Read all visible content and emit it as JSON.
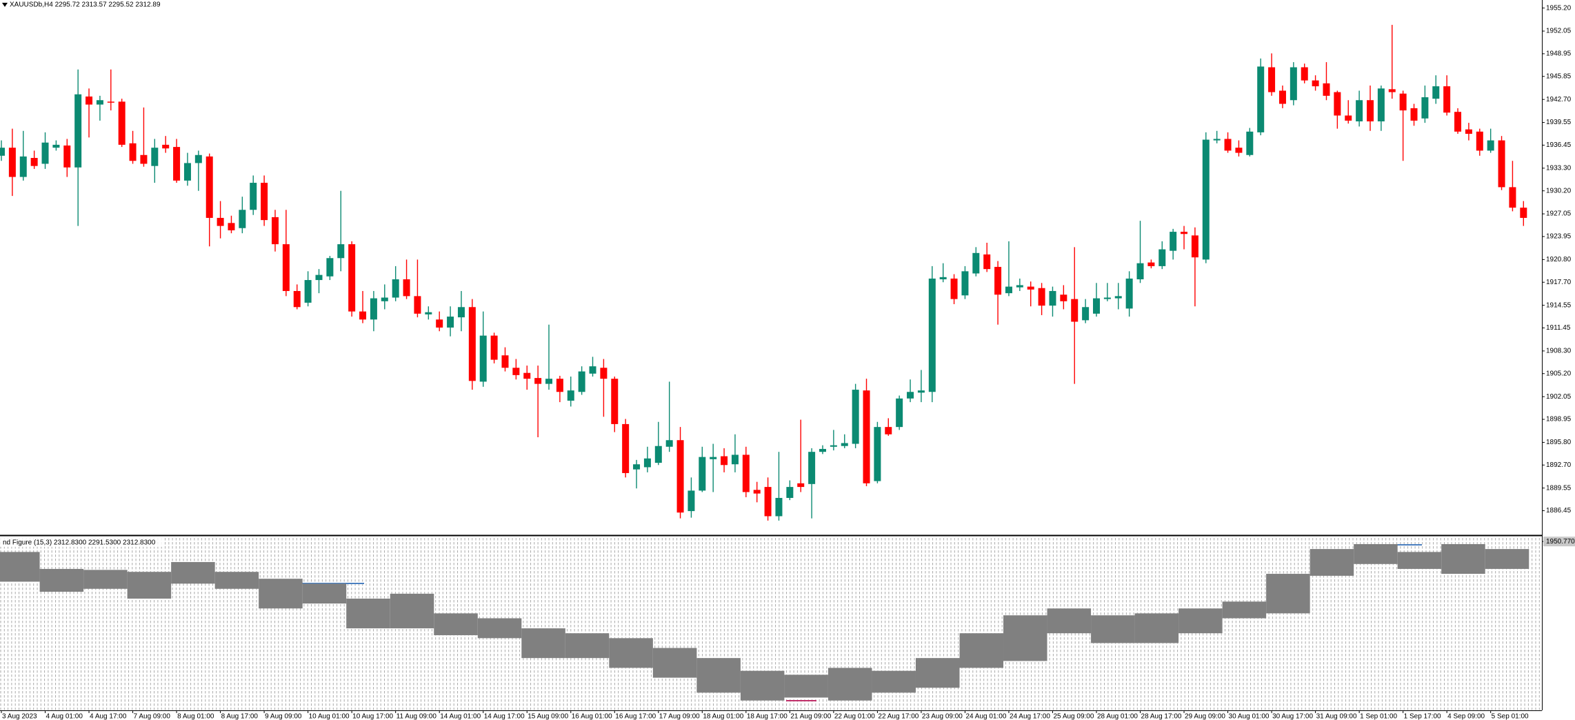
{
  "chart_data": [
    {
      "type": "candlestick",
      "title": "XAUUSDb,H4  2295.72 2313.57 2295.52 2312.89",
      "up_color": "#0b8a72",
      "down_color": "#ff0000",
      "categories": [
        "3 Aug 2023",
        null,
        null,
        null,
        "4 Aug 01:00",
        null,
        null,
        null,
        "4 Aug 17:00",
        null,
        null,
        null,
        "7 Aug 09:00",
        null,
        null,
        null,
        "8 Aug 01:00",
        null,
        null,
        null,
        "8 Aug 17:00",
        null,
        null,
        null,
        "9 Aug 09:00",
        null,
        null,
        null,
        "10 Aug 01:00",
        null,
        null,
        null,
        "10 Aug 17:00",
        null,
        null,
        null,
        "11 Aug 09:00",
        null,
        null,
        null,
        "14 Aug 01:00",
        null,
        null,
        null,
        "14 Aug 17:00",
        null,
        null,
        null,
        "15 Aug 09:00",
        null,
        null,
        null,
        "16 Aug 01:00",
        null,
        null,
        null,
        "16 Aug 17:00",
        null,
        null,
        null,
        "17 Aug 09:00",
        null,
        null,
        null,
        "18 Aug 01:00",
        null,
        null,
        null,
        "18 Aug 17:00",
        null,
        null,
        null,
        "21 Aug 09:00",
        null,
        null,
        null,
        "22 Aug 01:00",
        null,
        null,
        null,
        "22 Aug 17:00",
        null,
        null,
        null,
        "23 Aug 09:00",
        null,
        null,
        null,
        "24 Aug 01:00",
        null,
        null,
        null,
        "24 Aug 17:00",
        null,
        null,
        null,
        "25 Aug 09:00",
        null,
        null,
        null,
        "28 Aug 01:00",
        null,
        null,
        null,
        "28 Aug 17:00",
        null,
        null,
        null,
        "29 Aug 09:00",
        null,
        null,
        null,
        "30 Aug 01:00",
        null,
        null,
        null,
        "30 Aug 17:00",
        null,
        null,
        null,
        "31 Aug 09:00",
        null,
        null,
        null,
        "1 Sep 01:00",
        null,
        null,
        null,
        "1 Sep 17:00",
        null,
        null,
        null,
        "4 Sep 09:00",
        null,
        null,
        null,
        "5 Sep 01:00",
        null,
        null,
        null
      ],
      "open": [
        1935.0,
        1936.1,
        1932.1,
        1934.7,
        1933.9,
        1936.1,
        1936.4,
        1933.4,
        1943.1,
        1942.0,
        1942.4,
        1942.4,
        1936.7,
        1935.1,
        1933.6,
        1936.5,
        1936.2,
        1931.6,
        1934.0,
        1934.9,
        1926.5,
        1925.8,
        1925.1,
        1927.6,
        1931.3,
        1926.6,
        1922.9,
        1916.5,
        1914.9,
        1918.0,
        1918.5,
        1921.0,
        1922.9,
        1913.7,
        1912.6,
        1915.1,
        1915.6,
        1918.1,
        1915.8,
        1913.3,
        1912.6,
        1911.5,
        1912.9,
        1914.3,
        1904.1,
        1910.4,
        1907.7,
        1906.0,
        1905.3,
        1904.6,
        1903.8,
        1904.5,
        1901.5,
        1902.7,
        1905.2,
        1906.0,
        1904.5,
        1898.3,
        1892.1,
        1892.4,
        1893.0,
        1895.2,
        1896.1,
        1886.4,
        1889.2,
        1893.5,
        1893.9,
        1892.8,
        1894.1,
        1889.3,
        1889.7,
        1885.7,
        1888.2,
        1890.2,
        1890.1,
        1894.5,
        1895.2,
        1895.3,
        1895.6,
        1902.9,
        1890.5,
        1897.9,
        1897.9,
        1901.8,
        1902.6,
        1902.7,
        1918.1,
        1918.2,
        1915.9,
        1918.9,
        1921.5,
        1919.8,
        1916.2,
        1917.0,
        1917.1,
        1916.9,
        1914.5,
        1916.0,
        1915.4,
        1912.5,
        1913.4,
        1915.4,
        1915.5,
        1914.1,
        1918.1,
        1920.4,
        1919.9,
        1922.0,
        1924.6,
        1924.1,
        1920.8,
        1937.1,
        1937.3,
        1936.1,
        1935.1,
        1938.2,
        1947.1,
        1943.9,
        1942.6,
        1947.1,
        1945.3,
        1944.9,
        1943.7,
        1940.5,
        1939.7,
        1942.6,
        1939.7,
        1944.1,
        1943.5,
        1941.5,
        1940.1,
        1942.8,
        1944.5,
        1941.0,
        1938.6,
        1938.3,
        1935.7,
        1937.1,
        1930.7,
        1927.9
      ],
      "high": [
        1937.1,
        1938.7,
        1938.4,
        1935.7,
        1938.2,
        1937.1,
        1937.3,
        1946.8,
        1944.2,
        1943.2,
        1946.8,
        1942.8,
        1938.4,
        1941.6,
        1937.3,
        1937.7,
        1937.3,
        1935.4,
        1935.7,
        1935.3,
        1928.8,
        1926.8,
        1929.4,
        1932.3,
        1932.3,
        1927.6,
        1927.6,
        1917.4,
        1919.2,
        1919.5,
        1921.3,
        1930.2,
        1923.3,
        1916.5,
        1916.5,
        1917.4,
        1919.9,
        1920.8,
        1920.8,
        1914.4,
        1913.7,
        1914.4,
        1916.5,
        1915.4,
        1913.7,
        1910.8,
        1908.8,
        1907.2,
        1906.3,
        1906.3,
        1911.9,
        1904.9,
        1904.8,
        1906.2,
        1907.5,
        1907.2,
        1904.8,
        1899.0,
        1893.4,
        1895.2,
        1898.6,
        1904.1,
        1897.9,
        1891.0,
        1895.2,
        1895.6,
        1895.0,
        1896.9,
        1895.2,
        1890.4,
        1891.0,
        1894.5,
        1890.6,
        1898.9,
        1895.0,
        1895.4,
        1897.5,
        1896.9,
        1903.8,
        1904.5,
        1898.6,
        1899.1,
        1902.2,
        1904.4,
        1905.7,
        1919.9,
        1920.3,
        1918.8,
        1919.9,
        1922.5,
        1923.1,
        1920.6,
        1923.3,
        1918.2,
        1917.8,
        1917.6,
        1917.1,
        1917.3,
        1922.5,
        1915.4,
        1917.6,
        1917.6,
        1917.6,
        1919.2,
        1926.1,
        1920.8,
        1923.3,
        1925.0,
        1925.4,
        1925.2,
        1938.2,
        1938.4,
        1938.2,
        1937.1,
        1938.8,
        1948.3,
        1949.0,
        1944.6,
        1947.8,
        1947.6,
        1946.0,
        1947.8,
        1943.9,
        1942.6,
        1943.9,
        1944.6,
        1944.6,
        1952.9,
        1943.9,
        1942.1,
        1944.6,
        1946.0,
        1946.0,
        1941.5,
        1939.5,
        1938.7,
        1938.7,
        1937.7,
        1934.3,
        1928.8
      ],
      "low": [
        1934.3,
        1929.5,
        1931.6,
        1933.2,
        1933.2,
        1935.7,
        1932.1,
        1925.4,
        1937.5,
        1939.8,
        1941.2,
        1936.2,
        1933.9,
        1933.5,
        1931.3,
        1935.4,
        1931.3,
        1930.9,
        1930.2,
        1922.6,
        1923.7,
        1924.4,
        1924.4,
        1926.9,
        1925.4,
        1921.9,
        1915.8,
        1914.0,
        1914.4,
        1916.2,
        1918.0,
        1919.2,
        1913.0,
        1912.1,
        1911.0,
        1914.0,
        1915.1,
        1915.4,
        1912.9,
        1912.6,
        1911.0,
        1910.3,
        1911.0,
        1903.0,
        1903.4,
        1906.6,
        1905.5,
        1904.4,
        1903.0,
        1896.5,
        1903.0,
        1901.3,
        1900.7,
        1902.3,
        1904.8,
        1899.3,
        1897.2,
        1891.0,
        1889.5,
        1891.7,
        1892.7,
        1894.5,
        1885.4,
        1885.5,
        1889.0,
        1889.0,
        1891.7,
        1891.7,
        1888.3,
        1887.6,
        1885.1,
        1885.1,
        1887.9,
        1889.0,
        1885.4,
        1894.2,
        1894.7,
        1895.0,
        1895.0,
        1889.8,
        1890.2,
        1896.7,
        1897.5,
        1901.3,
        1901.3,
        1901.3,
        1917.7,
        1914.7,
        1915.4,
        1918.5,
        1919.1,
        1911.9,
        1915.8,
        1916.5,
        1914.4,
        1913.2,
        1913.0,
        1914.0,
        1903.8,
        1912.1,
        1913.0,
        1915.1,
        1914.0,
        1913.0,
        1917.6,
        1919.6,
        1919.5,
        1920.8,
        1922.2,
        1914.4,
        1920.3,
        1936.7,
        1935.4,
        1934.9,
        1934.9,
        1937.8,
        1943.2,
        1941.5,
        1941.9,
        1944.9,
        1943.9,
        1942.6,
        1938.7,
        1939.4,
        1939.0,
        1938.4,
        1938.4,
        1942.8,
        1934.3,
        1939.1,
        1939.5,
        1942.1,
        1940.5,
        1938.0,
        1937.1,
        1935.0,
        1935.4,
        1930.3,
        1927.4,
        1925.4
      ],
      "close": [
        1936.1,
        1932.1,
        1934.9,
        1933.6,
        1936.8,
        1936.5,
        1933.4,
        1943.4,
        1942.0,
        1942.6,
        1942.3,
        1936.5,
        1934.3,
        1933.9,
        1936.1,
        1936.0,
        1931.6,
        1934.0,
        1935.1,
        1926.5,
        1925.4,
        1924.8,
        1927.6,
        1931.3,
        1926.2,
        1922.9,
        1916.5,
        1914.3,
        1918.0,
        1918.7,
        1921.0,
        1922.9,
        1913.7,
        1912.6,
        1915.5,
        1915.6,
        1918.1,
        1915.8,
        1913.4,
        1913.6,
        1911.5,
        1913.0,
        1914.3,
        1904.2,
        1910.4,
        1907.1,
        1906.0,
        1905.0,
        1904.5,
        1903.8,
        1904.5,
        1902.7,
        1902.9,
        1905.5,
        1906.2,
        1904.5,
        1898.3,
        1891.6,
        1892.8,
        1893.6,
        1895.3,
        1896.1,
        1886.2,
        1889.2,
        1893.8,
        1893.8,
        1892.7,
        1894.1,
        1889.0,
        1888.8,
        1885.7,
        1888.2,
        1889.7,
        1889.7,
        1894.5,
        1894.9,
        1895.4,
        1895.7,
        1903.0,
        1890.2,
        1897.9,
        1896.9,
        1901.8,
        1902.7,
        1902.9,
        1918.2,
        1918.4,
        1915.4,
        1919.2,
        1921.7,
        1919.5,
        1916.0,
        1917.1,
        1917.3,
        1916.7,
        1914.5,
        1916.5,
        1915.1,
        1912.3,
        1914.3,
        1915.5,
        1915.6,
        1915.8,
        1918.2,
        1920.3,
        1919.9,
        1922.2,
        1924.6,
        1924.3,
        1921.1,
        1937.2,
        1937.3,
        1935.7,
        1935.4,
        1938.3,
        1947.2,
        1943.7,
        1942.1,
        1947.1,
        1945.3,
        1944.5,
        1943.2,
        1940.5,
        1939.8,
        1942.6,
        1939.7,
        1944.2,
        1943.7,
        1941.2,
        1939.8,
        1943.0,
        1944.5,
        1940.9,
        1938.3,
        1938.0,
        1935.7,
        1937.1,
        1930.7,
        1927.9,
        1926.5
      ],
      "ylim": [
        1883.2,
        1956.3
      ],
      "yticks": [
        {
          "value": 1955.2,
          "label": "1955.20"
        },
        1952.05,
        1948.95,
        1945.85,
        {
          "value": 1942.7,
          "label": "1942.70"
        },
        1939.55,
        1936.45,
        {
          "value": 1933.3,
          "label": "1933.30"
        },
        {
          "value": 1930.2,
          "label": "1930.20"
        },
        1927.05,
        1923.95,
        {
          "value": 1920.8,
          "label": "1920.80"
        },
        {
          "value": 1917.7,
          "label": "1917.70"
        },
        1914.55,
        1911.45,
        {
          "value": 1908.3,
          "label": "1908.30"
        },
        {
          "value": 1905.2,
          "label": "1905.20"
        },
        1902.05,
        1898.95,
        {
          "value": 1895.8,
          "label": "1895.80"
        },
        {
          "value": 1892.7,
          "label": "1892.70"
        },
        1889.55,
        1886.45
      ]
    },
    {
      "type": "band",
      "title": "nd Figure (15,3) 2312.8300 2291.5300 2312.8300",
      "color": "#808080",
      "upper": [
        1946.5,
        1939.6,
        1939.2,
        1938.4,
        1942.4,
        1938.4,
        1935.6,
        1933.6,
        1927.5,
        1929.5,
        1921.5,
        1919.5,
        1915.4,
        1913.4,
        1911.4,
        1907.4,
        1903.3,
        1898.1,
        1896.5,
        1899.3,
        1898.1,
        1903.3,
        1913.4,
        1920.7,
        1923.5,
        1920.7,
        1921.5,
        1923.5,
        1926.3,
        1937.6,
        1947.7,
        1949.7,
        1946.5,
        1949.7,
        1947.7
      ],
      "lower": [
        1934.4,
        1930.3,
        1931.5,
        1927.5,
        1933.6,
        1931.5,
        1923.5,
        1925.5,
        1915.4,
        1915.4,
        1912.6,
        1911.4,
        1903.3,
        1903.3,
        1899.3,
        1895.3,
        1889.2,
        1886.0,
        1887.2,
        1886.0,
        1889.2,
        1891.2,
        1899.3,
        1902.1,
        1913.4,
        1909.4,
        1909.4,
        1913.4,
        1919.5,
        1921.5,
        1936.8,
        1941.6,
        1939.6,
        1937.6,
        1939.6
      ],
      "ylim": [
        1882.0,
        1952.5
      ],
      "yticks": [
        {
          "value": 1950.77,
          "label": "1950.770"
        }
      ]
    }
  ]
}
